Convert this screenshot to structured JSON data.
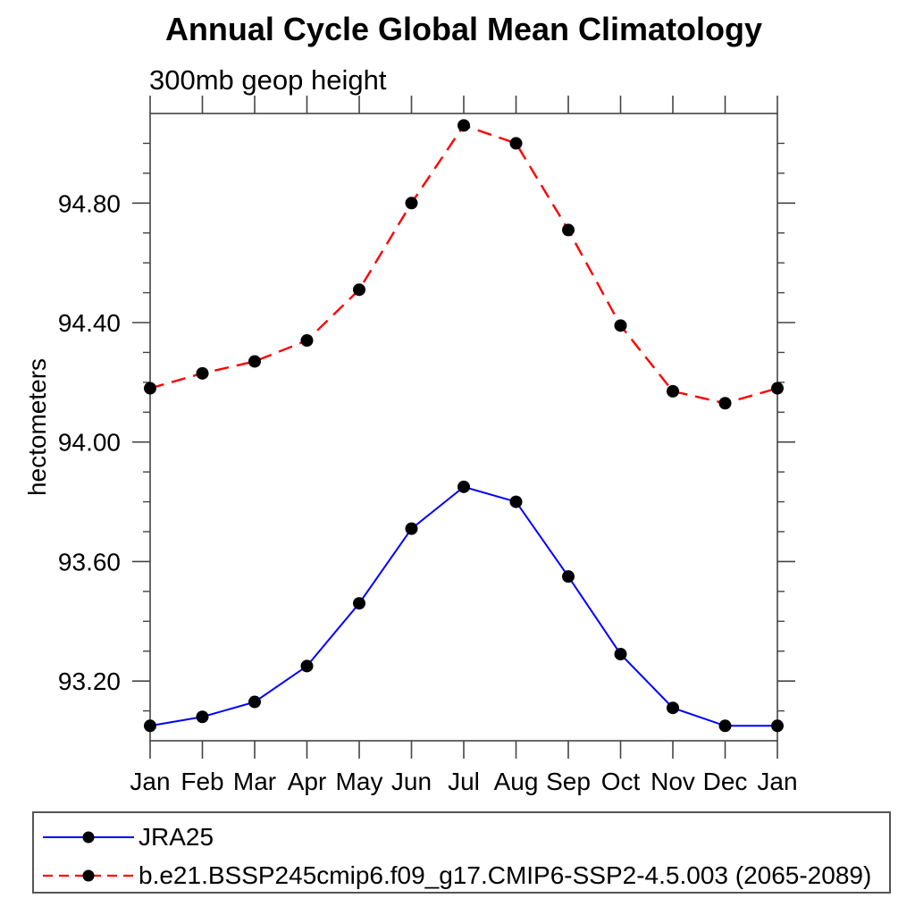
{
  "chart_data": {
    "type": "line",
    "title": "Annual Cycle Global Mean Climatology",
    "subtitle": "300mb geop height",
    "ylabel": "hectometers",
    "x_categories": [
      "Jan",
      "Feb",
      "Mar",
      "Apr",
      "May",
      "Jun",
      "Jul",
      "Aug",
      "Sep",
      "Oct",
      "Nov",
      "Dec",
      "Jan"
    ],
    "ylim": [
      93.0,
      95.1
    ],
    "yticks_major": [
      93.2,
      93.6,
      94.0,
      94.4,
      94.8
    ],
    "ytick_minor_step": 0.1,
    "ytick_label_format_decimals": 2,
    "grid": false,
    "legend_position": "bottom-left",
    "axis_color": "#444444",
    "text_color": "#000000",
    "series": [
      {
        "name": "JRA25",
        "line_color": "#0000ff",
        "line_style": "solid",
        "marker": "circle",
        "marker_color": "#000000",
        "values": [
          93.05,
          93.08,
          93.13,
          93.25,
          93.46,
          93.71,
          93.85,
          93.8,
          93.55,
          93.29,
          93.11,
          93.05,
          93.05
        ]
      },
      {
        "name": "b.e21.BSSP245cmip6.f09_g17.CMIP6-SSP2-4.5.003 (2065-2089)",
        "line_color": "#ff0000",
        "line_style": "dashed",
        "marker": "circle",
        "marker_color": "#000000",
        "values": [
          94.18,
          94.23,
          94.27,
          94.34,
          94.51,
          94.8,
          95.06,
          95.0,
          94.71,
          94.39,
          94.17,
          94.13,
          94.18
        ]
      }
    ]
  }
}
